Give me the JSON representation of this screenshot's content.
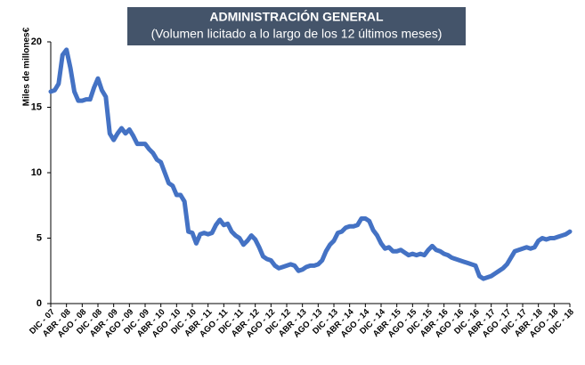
{
  "chart_data": {
    "type": "line",
    "title": "ADMINISTRACIÓN GENERAL",
    "subtitle": "(Volumen licitado a lo largo de los 12 últimos meses)",
    "y_label": "Miles de millones€",
    "categories": [
      "DIC - 07",
      null,
      null,
      null,
      "ABR - 08",
      null,
      null,
      null,
      "AGO - 08",
      null,
      null,
      null,
      "DIC - 08",
      null,
      null,
      null,
      "ABR - 09",
      null,
      null,
      null,
      "AGO - 09",
      null,
      null,
      null,
      "DIC - 09",
      null,
      null,
      null,
      "ABR - 10",
      null,
      null,
      null,
      "AGO - 10",
      null,
      null,
      null,
      "DIC - 10",
      null,
      null,
      null,
      "ABR - 11",
      null,
      null,
      null,
      "AGO - 11",
      null,
      null,
      null,
      "DIC - 11",
      null,
      null,
      null,
      "ABR - 12",
      null,
      null,
      null,
      "AGO - 12",
      null,
      null,
      null,
      "DIC - 12",
      null,
      null,
      null,
      "ABR - 13",
      null,
      null,
      null,
      "AGO - 13",
      null,
      null,
      null,
      "DIC - 13",
      null,
      null,
      null,
      "ABR - 14",
      null,
      null,
      null,
      "AGO - 14",
      null,
      null,
      null,
      "DIC - 14",
      null,
      null,
      null,
      "ABR - 15",
      null,
      null,
      null,
      "AGO - 15",
      null,
      null,
      null,
      "DIC - 15",
      null,
      null,
      null,
      "ABR - 16",
      null,
      null,
      null,
      "AGO - 16",
      null,
      null,
      null,
      "DIC - 16",
      null,
      null,
      null,
      "ABR - 17",
      null,
      null,
      null,
      "AGO - 17",
      null,
      null,
      null,
      "DIC - 17",
      null,
      null,
      null,
      "ABR - 18",
      null,
      null,
      null,
      "AGO - 18",
      null,
      null,
      null,
      "DIC - 18"
    ],
    "values": [
      16.2,
      16.3,
      16.8,
      19.0,
      19.4,
      18.0,
      16.2,
      15.5,
      15.5,
      15.6,
      15.6,
      16.5,
      17.2,
      16.3,
      15.8,
      13.0,
      12.5,
      13.0,
      13.4,
      13.0,
      13.3,
      12.8,
      12.2,
      12.2,
      12.2,
      11.8,
      11.5,
      11.0,
      10.8,
      10.0,
      9.2,
      9.0,
      8.3,
      8.3,
      7.8,
      5.5,
      5.4,
      4.6,
      5.3,
      5.4,
      5.3,
      5.4,
      6.0,
      6.4,
      6.0,
      6.1,
      5.5,
      5.2,
      5.0,
      4.5,
      4.8,
      5.2,
      4.9,
      4.3,
      3.6,
      3.4,
      3.3,
      2.9,
      2.7,
      2.8,
      2.9,
      3.0,
      2.9,
      2.5,
      2.6,
      2.8,
      2.9,
      2.9,
      3.0,
      3.3,
      4.0,
      4.5,
      4.8,
      5.4,
      5.5,
      5.8,
      5.9,
      5.9,
      6.0,
      6.5,
      6.5,
      6.3,
      5.6,
      5.2,
      4.6,
      4.2,
      4.3,
      4.0,
      4.0,
      4.1,
      3.9,
      3.7,
      3.8,
      3.7,
      3.8,
      3.7,
      4.1,
      4.4,
      4.1,
      4.0,
      3.8,
      3.7,
      3.5,
      3.4,
      3.3,
      3.2,
      3.1,
      3.0,
      2.9,
      2.1,
      1.9,
      2.0,
      2.1,
      2.3,
      2.5,
      2.7,
      3.0,
      3.5,
      4.0,
      4.1,
      4.2,
      4.3,
      4.2,
      4.3,
      4.8,
      5.0,
      4.9,
      5.0,
      5.0,
      5.1,
      5.2,
      5.3,
      5.5
    ],
    "color": "#4472c4",
    "ylim": [
      0,
      20
    ],
    "yticks": [
      0,
      5,
      10,
      15,
      20
    ],
    "grid": false
  }
}
